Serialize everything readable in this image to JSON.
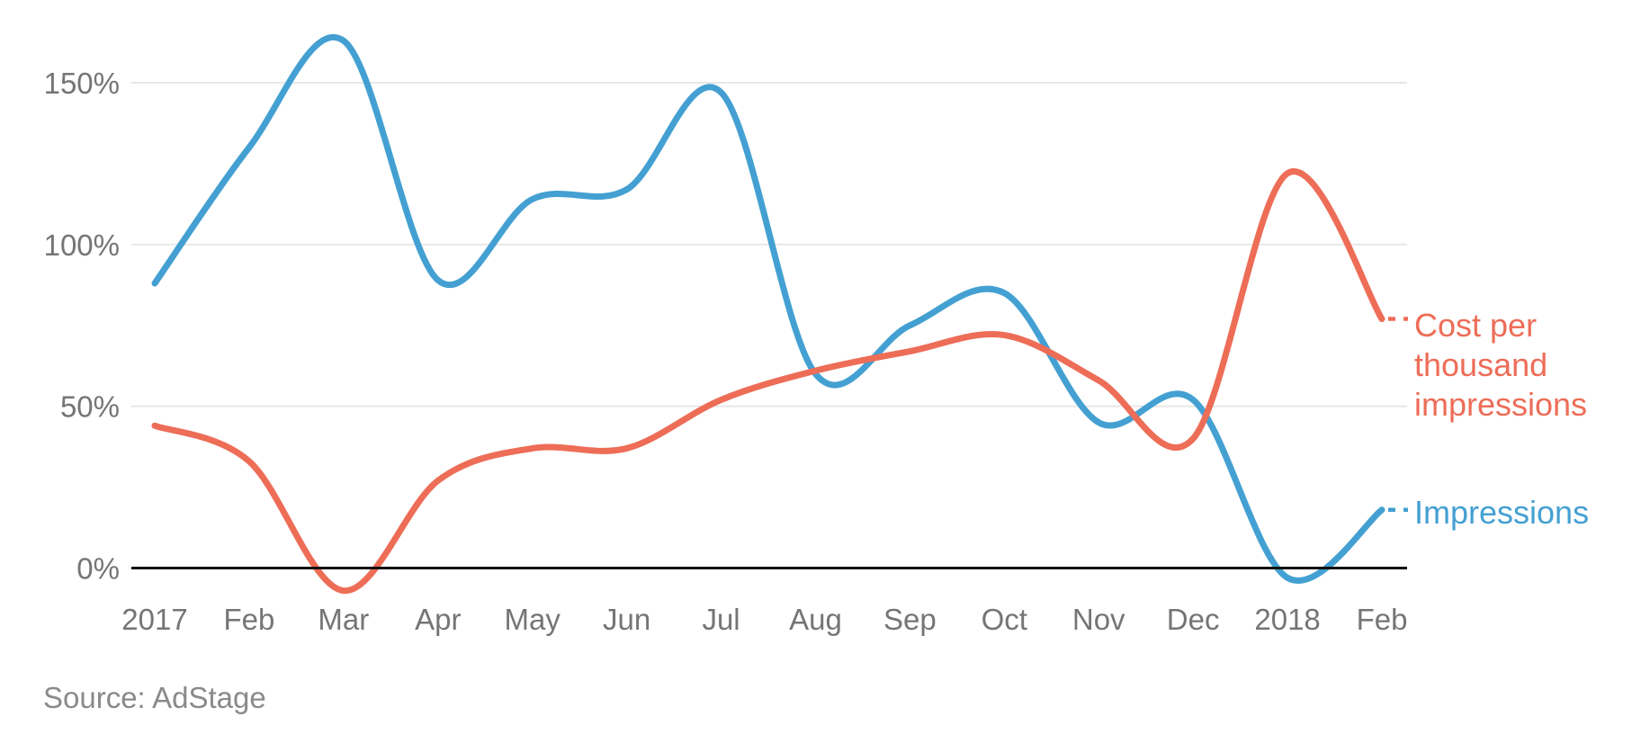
{
  "chart_data": {
    "type": "line",
    "title": "",
    "xlabel": "",
    "ylabel": "",
    "x_labels": [
      "2017",
      "Feb",
      "Mar",
      "Apr",
      "May",
      "Jun",
      "Jul",
      "Aug",
      "Sep",
      "Oct",
      "Nov",
      "Dec",
      "2018",
      "Feb"
    ],
    "y_ticks": [
      {
        "value": 0,
        "label": "0%"
      },
      {
        "value": 50,
        "label": "50%"
      },
      {
        "value": 100,
        "label": "100%"
      },
      {
        "value": 150,
        "label": "150%"
      }
    ],
    "ylim": [
      -10,
      172
    ],
    "grid": true,
    "legend_position": "right-of-line-ends",
    "series": [
      {
        "name": "Impressions",
        "legend_lines": [
          "Impressions"
        ],
        "color": "#44a0d2",
        "values": [
          88,
          130,
          163,
          89,
          114,
          117,
          147,
          60,
          75,
          85,
          45,
          52,
          -3,
          18
        ]
      },
      {
        "name": "Cost per thousand impressions",
        "legend_lines": [
          "Cost per",
          "thousand",
          "impressions"
        ],
        "color": "#ed6d57",
        "values": [
          44,
          33,
          -7,
          27,
          37,
          37,
          52,
          61,
          67,
          72,
          58,
          40,
          122,
          77
        ]
      }
    ]
  },
  "palette": {
    "gridline": "#e8e8e8",
    "zero_axis": "#111111",
    "tick_text": "#757575",
    "source_text": "#8a8a8a"
  },
  "source": {
    "label": "Source: AdStage"
  }
}
